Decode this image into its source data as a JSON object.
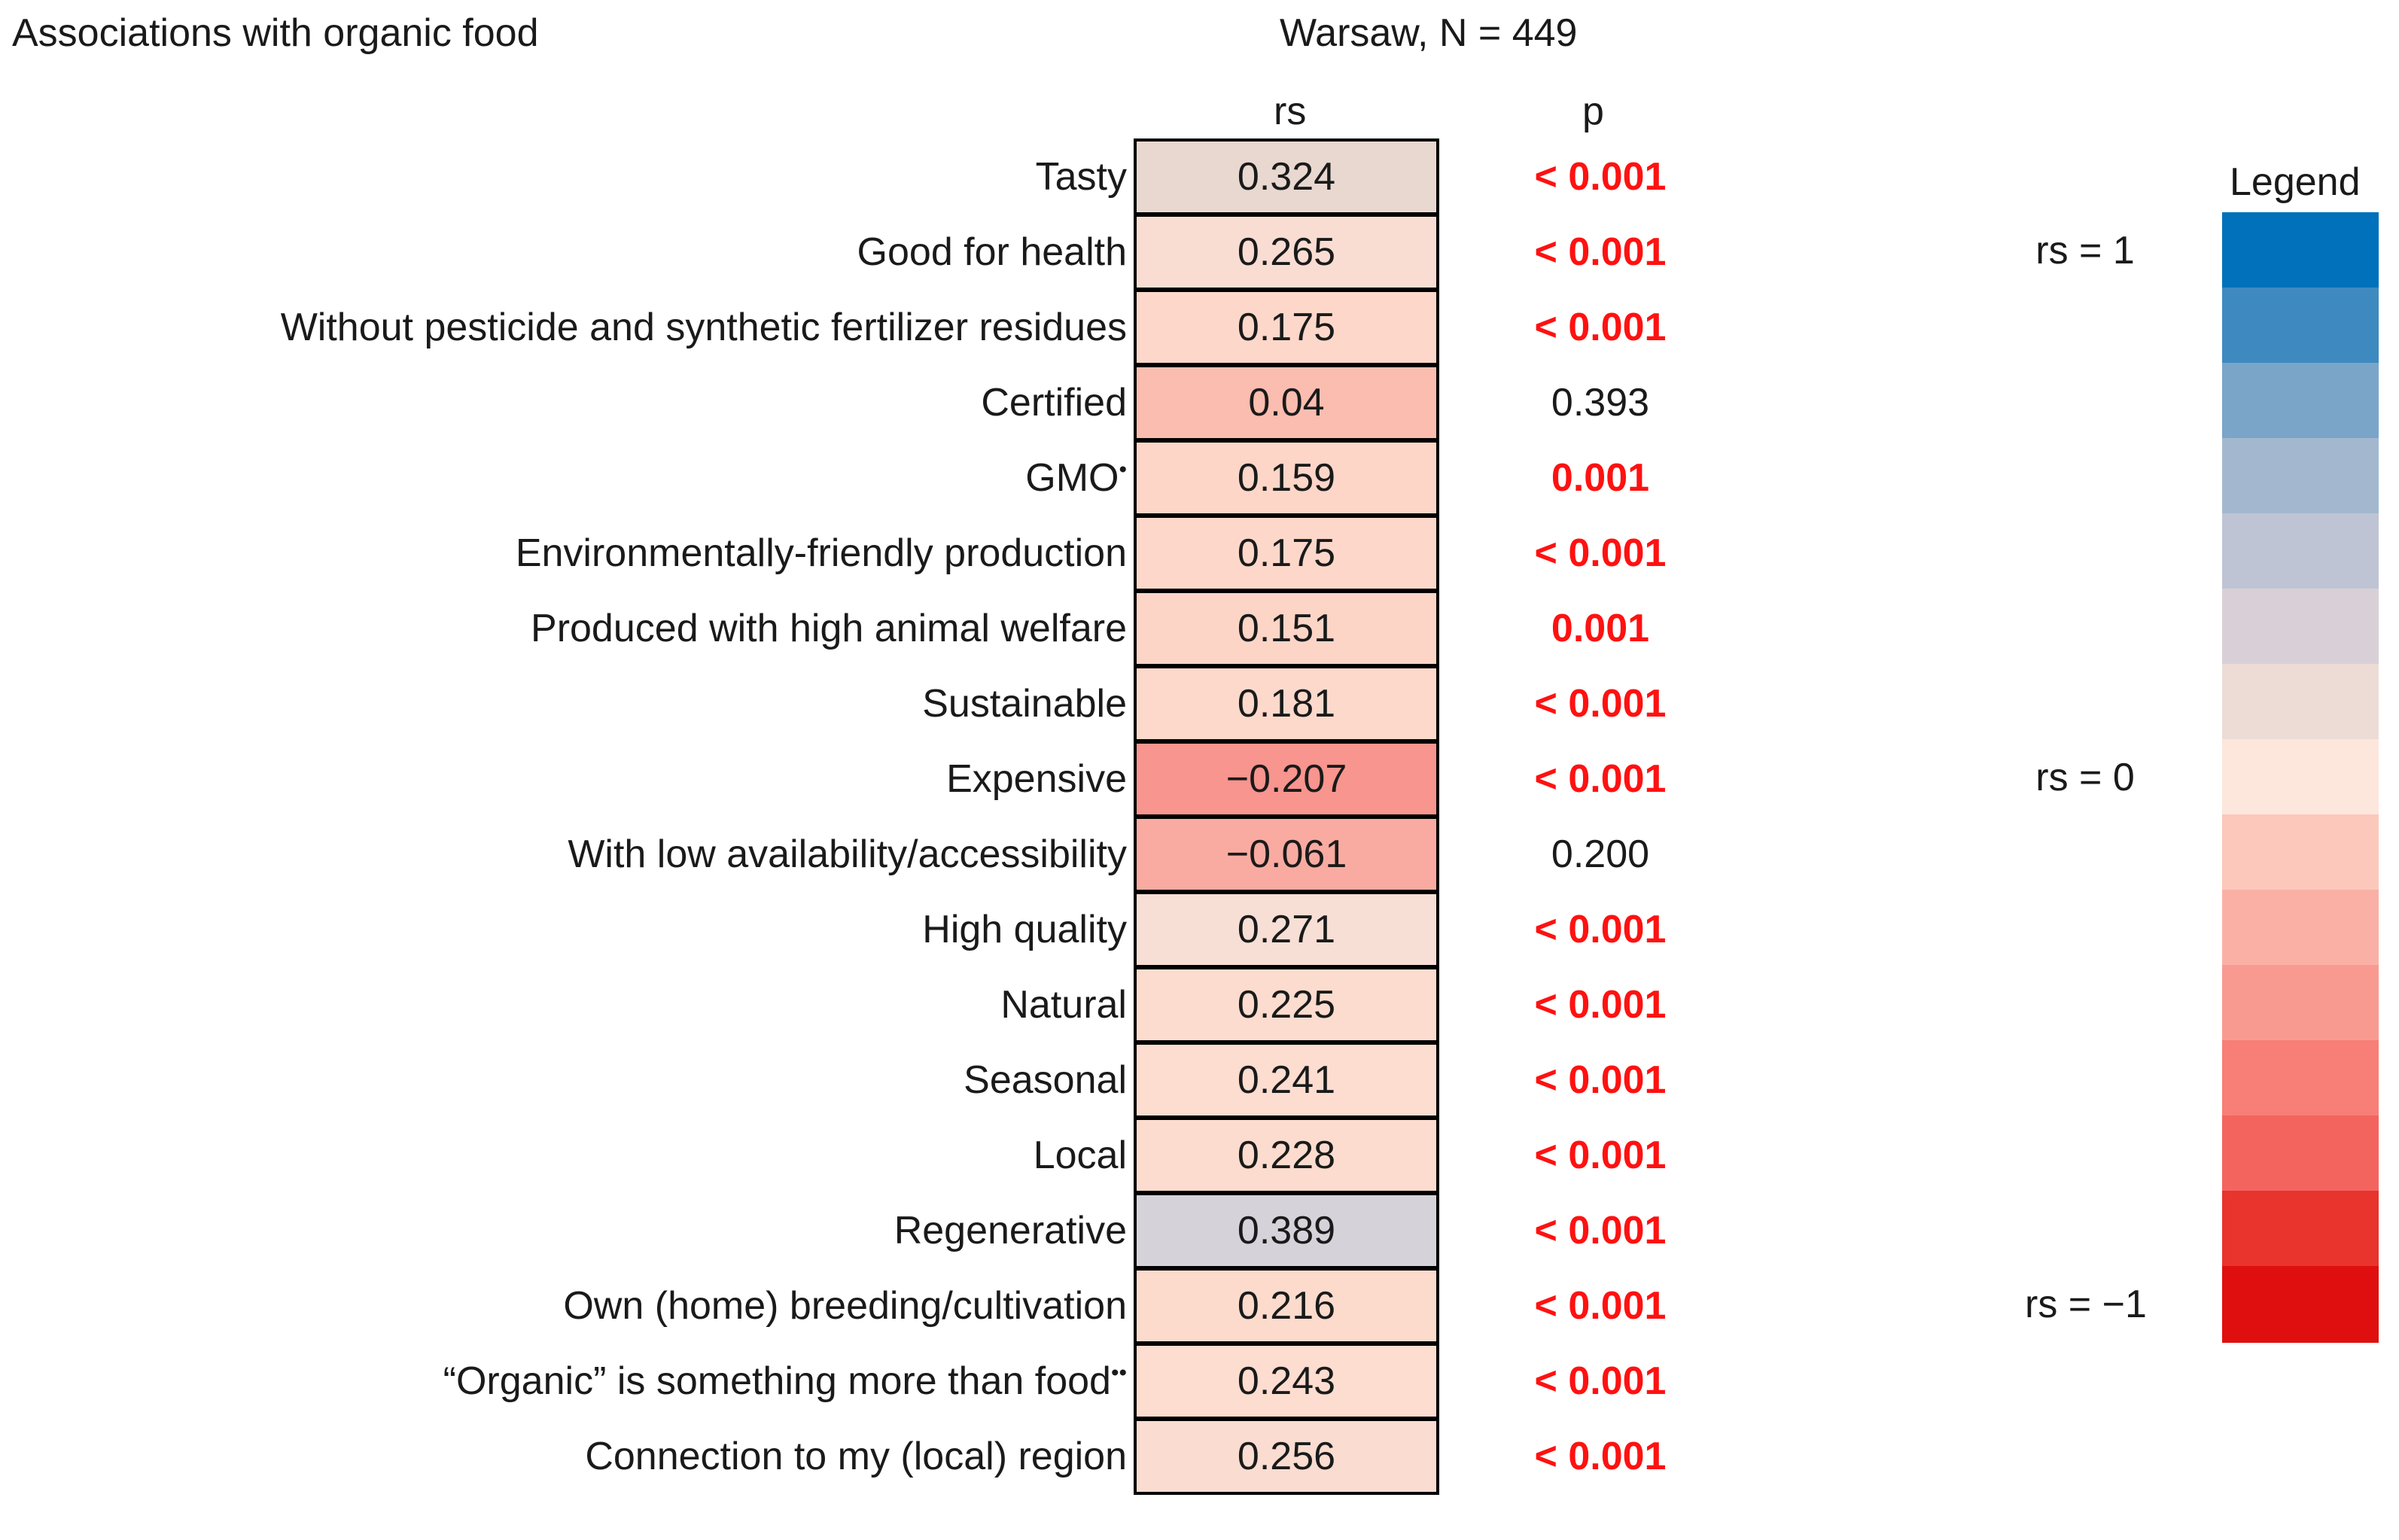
{
  "chart_data": {
    "type": "heatmap",
    "title": "Associations with organic food",
    "subtitle": "Warsaw, N = 449",
    "columns": [
      "rs",
      "p"
    ],
    "rows": [
      {
        "label": "Tasty",
        "mark": "",
        "rs": 0.324,
        "rs_text": "0.324",
        "p": "< 0.001",
        "significant": true,
        "color": "#e8d8d0"
      },
      {
        "label": "Good for health",
        "mark": "",
        "rs": 0.265,
        "rs_text": "0.265",
        "p": "< 0.001",
        "significant": true,
        "color": "#f9ddd2"
      },
      {
        "label": "Without pesticide and synthetic fertilizer residues",
        "mark": "",
        "rs": 0.175,
        "rs_text": "0.175",
        "p": "< 0.001",
        "significant": true,
        "color": "#fdd8ca"
      },
      {
        "label": "Certified",
        "mark": "",
        "rs": 0.04,
        "rs_text": "0.04",
        "p": "0.393",
        "significant": false,
        "color": "#fbbdb0"
      },
      {
        "label": "GMO",
        "mark": "•",
        "rs": 0.159,
        "rs_text": "0.159",
        "p": "0.001",
        "significant": true,
        "color": "#fdd6c8"
      },
      {
        "label": "Environmentally-friendly production",
        "mark": "",
        "rs": 0.175,
        "rs_text": "0.175",
        "p": "< 0.001",
        "significant": true,
        "color": "#fdd8ca"
      },
      {
        "label": "Produced with high animal welfare",
        "mark": "",
        "rs": 0.151,
        "rs_text": "0.151",
        "p": "0.001",
        "significant": true,
        "color": "#fdd5c7"
      },
      {
        "label": "Sustainable",
        "mark": "",
        "rs": 0.181,
        "rs_text": "0.181",
        "p": "< 0.001",
        "significant": true,
        "color": "#fdd9cb"
      },
      {
        "label": "Expensive",
        "mark": "",
        "rs": -0.207,
        "rs_text": "−0.207",
        "p": "< 0.001",
        "significant": true,
        "color": "#f7958e"
      },
      {
        "label": "With low availability/accessibility",
        "mark": "",
        "rs": -0.061,
        "rs_text": "−0.061",
        "p": "0.200",
        "significant": false,
        "color": "#f9aba1"
      },
      {
        "label": "High quality",
        "mark": "",
        "rs": 0.271,
        "rs_text": "0.271",
        "p": "< 0.001",
        "significant": true,
        "color": "#f7dfd6"
      },
      {
        "label": "Natural",
        "mark": "",
        "rs": 0.225,
        "rs_text": "0.225",
        "p": "< 0.001",
        "significant": true,
        "color": "#fcdcce"
      },
      {
        "label": "Seasonal",
        "mark": "",
        "rs": 0.241,
        "rs_text": "0.241",
        "p": "< 0.001",
        "significant": true,
        "color": "#fcddd0"
      },
      {
        "label": "Local",
        "mark": "",
        "rs": 0.228,
        "rs_text": "0.228",
        "p": "< 0.001",
        "significant": true,
        "color": "#fcdcce"
      },
      {
        "label": "Regenerative",
        "mark": "",
        "rs": 0.389,
        "rs_text": "0.389",
        "p": "< 0.001",
        "significant": true,
        "color": "#d6d2da"
      },
      {
        "label": "Own (home) breeding/cultivation",
        "mark": "",
        "rs": 0.216,
        "rs_text": "0.216",
        "p": "< 0.001",
        "significant": true,
        "color": "#fcdbcd"
      },
      {
        "label": "“Organic” is something more than food",
        "mark": "••",
        "rs": 0.243,
        "rs_text": "0.243",
        "p": "< 0.001",
        "significant": true,
        "color": "#fcddd0"
      },
      {
        "label": "Connection to my (local) region",
        "mark": "",
        "rs": 0.256,
        "rs_text": "0.256",
        "p": "< 0.001",
        "significant": true,
        "color": "#fadcd1"
      }
    ],
    "legend": {
      "title": "Legend",
      "labels": [
        {
          "text": "rs = 1",
          "step": 0
        },
        {
          "text": "rs = 0",
          "step": 7
        },
        {
          "text": "rs = −1",
          "step": 14
        }
      ],
      "colors": [
        "#0071ba",
        "#3e8ac0",
        "#7aa5c9",
        "#a3b8cf",
        "#bfc4d4",
        "#d8d0d6",
        "#ecdcd5",
        "#fde6dc",
        "#fcc8bc",
        "#fbb0a6",
        "#f99a91",
        "#f77f77",
        "#f4645f",
        "#e8342c",
        "#e00f0f"
      ]
    }
  }
}
